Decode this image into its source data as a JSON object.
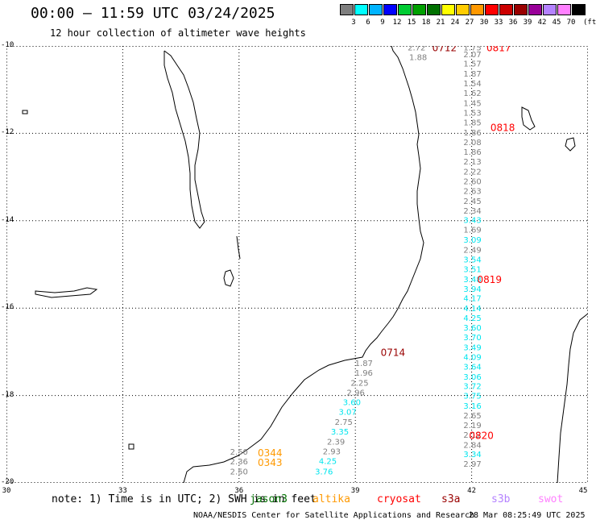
{
  "title": "00:00 – 11:59 UTC 03/24/2025",
  "subtitle": "12 hour collection of altimeter wave heights",
  "colorscale": {
    "unit": "(ft)",
    "entries": [
      {
        "label": "3",
        "color": "#7f7f7f"
      },
      {
        "label": "6",
        "color": "#00ffff"
      },
      {
        "label": "9",
        "color": "#00b4ff"
      },
      {
        "label": "12",
        "color": "#0000ff"
      },
      {
        "label": "15",
        "color": "#00cc33"
      },
      {
        "label": "18",
        "color": "#00a000"
      },
      {
        "label": "21",
        "color": "#007000"
      },
      {
        "label": "24",
        "color": "#ffff00"
      },
      {
        "label": "27",
        "color": "#ffcc00"
      },
      {
        "label": "30",
        "color": "#ff9900"
      },
      {
        "label": "33",
        "color": "#ff0000"
      },
      {
        "label": "36",
        "color": "#cc0000"
      },
      {
        "label": "39",
        "color": "#990000"
      },
      {
        "label": "42",
        "color": "#990099"
      },
      {
        "label": "45",
        "color": "#b482ff"
      },
      {
        "label": "70",
        "color": "#ff80ff"
      },
      {
        "label": "",
        "color": "#000000"
      }
    ]
  },
  "map": {
    "lon_range": [
      30,
      45
    ],
    "lat_range": [
      -20,
      -10
    ],
    "lon_ticks": [
      "30",
      "33",
      "36",
      "39",
      "42",
      "45"
    ],
    "lat_ticks": [
      "-10",
      "-12",
      "-14",
      "-16",
      "-18",
      "-20"
    ],
    "grid": true
  },
  "observations": [
    {
      "t": "2.72",
      "c": "gray",
      "x": 40.58,
      "y": -10.03
    },
    {
      "t": "1.88",
      "c": "gray",
      "x": 40.62,
      "y": -10.25
    },
    {
      "t": "1.75",
      "c": "gray",
      "x": 42.02,
      "y": -10.03
    },
    {
      "t": "2.07",
      "c": "gray",
      "x": 42.02,
      "y": -10.18
    },
    {
      "t": "1.57",
      "c": "gray",
      "x": 42.02,
      "y": -10.4
    },
    {
      "t": "1.87",
      "c": "gray",
      "x": 42.02,
      "y": -10.63
    },
    {
      "t": "1.54",
      "c": "gray",
      "x": 42.02,
      "y": -10.85
    },
    {
      "t": "1.62",
      "c": "gray",
      "x": 42.02,
      "y": -11.07
    },
    {
      "t": "1.45",
      "c": "gray",
      "x": 42.02,
      "y": -11.3
    },
    {
      "t": "1.53",
      "c": "gray",
      "x": 42.02,
      "y": -11.52
    },
    {
      "t": "1.85",
      "c": "gray",
      "x": 42.02,
      "y": -11.74
    },
    {
      "t": "1.86",
      "c": "gray",
      "x": 42.02,
      "y": -11.97
    },
    {
      "t": "2.08",
      "c": "gray",
      "x": 42.02,
      "y": -12.2
    },
    {
      "t": "1.86",
      "c": "gray",
      "x": 42.02,
      "y": -12.42
    },
    {
      "t": "2.13",
      "c": "gray",
      "x": 42.02,
      "y": -12.64
    },
    {
      "t": "2.22",
      "c": "gray",
      "x": 42.02,
      "y": -12.87
    },
    {
      "t": "2.60",
      "c": "gray",
      "x": 42.02,
      "y": -13.09
    },
    {
      "t": "2.63",
      "c": "gray",
      "x": 42.02,
      "y": -13.31
    },
    {
      "t": "2.45",
      "c": "gray",
      "x": 42.02,
      "y": -13.54
    },
    {
      "t": "2.34",
      "c": "gray",
      "x": 42.02,
      "y": -13.76
    },
    {
      "t": "3.43",
      "c": "cyan",
      "x": 42.02,
      "y": -13.98
    },
    {
      "t": "1.69",
      "c": "gray",
      "x": 42.02,
      "y": -14.2
    },
    {
      "t": "3.09",
      "c": "cyan",
      "x": 42.02,
      "y": -14.43
    },
    {
      "t": "2.49",
      "c": "gray",
      "x": 42.02,
      "y": -14.66
    },
    {
      "t": "3.54",
      "c": "cyan",
      "x": 42.02,
      "y": -14.88
    },
    {
      "t": "3.51",
      "c": "cyan",
      "x": 42.02,
      "y": -15.1
    },
    {
      "t": "3.48",
      "c": "cyan",
      "x": 42.02,
      "y": -15.33
    },
    {
      "t": "3.94",
      "c": "cyan",
      "x": 42.02,
      "y": -15.55
    },
    {
      "t": "4.17",
      "c": "cyan",
      "x": 42.02,
      "y": -15.77
    },
    {
      "t": "4.14",
      "c": "cyan",
      "x": 42.02,
      "y": -16.0
    },
    {
      "t": "4.25",
      "c": "cyan",
      "x": 42.02,
      "y": -16.22
    },
    {
      "t": "3.60",
      "c": "cyan",
      "x": 42.02,
      "y": -16.44
    },
    {
      "t": "3.70",
      "c": "cyan",
      "x": 42.02,
      "y": -16.66
    },
    {
      "t": "3.49",
      "c": "cyan",
      "x": 42.02,
      "y": -16.89
    },
    {
      "t": "4.09",
      "c": "cyan",
      "x": 42.02,
      "y": -17.11
    },
    {
      "t": "3.64",
      "c": "cyan",
      "x": 42.02,
      "y": -17.33
    },
    {
      "t": "3.06",
      "c": "cyan",
      "x": 42.02,
      "y": -17.56
    },
    {
      "t": "3.72",
      "c": "cyan",
      "x": 42.02,
      "y": -17.78
    },
    {
      "t": "3.75",
      "c": "cyan",
      "x": 42.02,
      "y": -18.0
    },
    {
      "t": "3.16",
      "c": "cyan",
      "x": 42.02,
      "y": -18.23
    },
    {
      "t": "2.65",
      "c": "gray",
      "x": 42.02,
      "y": -18.45
    },
    {
      "t": "2.19",
      "c": "gray",
      "x": 42.02,
      "y": -18.67
    },
    {
      "t": "2.12",
      "c": "gray",
      "x": 42.02,
      "y": -18.89
    },
    {
      "t": "2.84",
      "c": "gray",
      "x": 42.02,
      "y": -19.12
    },
    {
      "t": "3.34",
      "c": "cyan",
      "x": 42.02,
      "y": -19.34
    },
    {
      "t": "2.97",
      "c": "gray",
      "x": 42.02,
      "y": -19.56
    },
    {
      "t": "1.87",
      "c": "gray",
      "x": 39.22,
      "y": -17.25
    },
    {
      "t": "1.96",
      "c": "gray",
      "x": 39.22,
      "y": -17.47
    },
    {
      "t": "2.25",
      "c": "gray",
      "x": 39.11,
      "y": -17.7
    },
    {
      "t": "2.96",
      "c": "gray",
      "x": 39.01,
      "y": -17.92
    },
    {
      "t": "3.60",
      "c": "cyan",
      "x": 38.91,
      "y": -18.15
    },
    {
      "t": "3.07",
      "c": "cyan",
      "x": 38.8,
      "y": -18.37
    },
    {
      "t": "2.75",
      "c": "gray",
      "x": 38.7,
      "y": -18.6
    },
    {
      "t": "3.35",
      "c": "cyan",
      "x": 38.6,
      "y": -18.82
    },
    {
      "t": "2.39",
      "c": "gray",
      "x": 38.5,
      "y": -19.05
    },
    {
      "t": "2.93",
      "c": "gray",
      "x": 38.39,
      "y": -19.27
    },
    {
      "t": "4.25",
      "c": "cyan",
      "x": 38.29,
      "y": -19.49
    },
    {
      "t": "3.76",
      "c": "cyan",
      "x": 38.19,
      "y": -19.73
    },
    {
      "t": "2.50",
      "c": "gray",
      "x": 36.0,
      "y": -19.28
    },
    {
      "t": "2.36",
      "c": "gray",
      "x": 36.0,
      "y": -19.5
    },
    {
      "t": "2.50",
      "c": "gray",
      "x": 36.0,
      "y": -19.73
    }
  ],
  "pass_times": [
    {
      "t": "0712",
      "c": "#990000",
      "x": 41.3,
      "y": -10.03
    },
    {
      "t": "0817",
      "c": "#ff0000",
      "x": 42.7,
      "y": -10.03
    },
    {
      "t": "0818",
      "c": "#ff0000",
      "x": 42.8,
      "y": -11.85
    },
    {
      "t": "0819",
      "c": "#ff0000",
      "x": 42.46,
      "y": -15.33
    },
    {
      "t": "0714",
      "c": "#990000",
      "x": 39.97,
      "y": -17.0
    },
    {
      "t": "0820",
      "c": "#ff0000",
      "x": 42.25,
      "y": -18.9
    },
    {
      "t": "0344",
      "c": "#ff9900",
      "x": 36.8,
      "y": -19.3
    },
    {
      "t": "0343",
      "c": "#ff9900",
      "x": 36.8,
      "y": -19.52
    }
  ],
  "observation_colors": {
    "gray": "#7f7f7f",
    "cyan": "#00e5ee"
  },
  "note": "note: 1) Time is in UTC; 2) SWH is in feet",
  "legend": [
    {
      "label": "jason3",
      "color": "#007000"
    },
    {
      "label": "altika",
      "color": "#ff9900"
    },
    {
      "label": "cryosat",
      "color": "#ff0000"
    },
    {
      "label": "s3a",
      "color": "#990000"
    },
    {
      "label": "s3b",
      "color": "#b482ff"
    },
    {
      "label": "swot",
      "color": "#ff80ff"
    }
  ],
  "credit": "NOAA/NESDIS Center for Satellite Applications and Research",
  "generated": "28 Mar 08:25:49 UTC 2025"
}
